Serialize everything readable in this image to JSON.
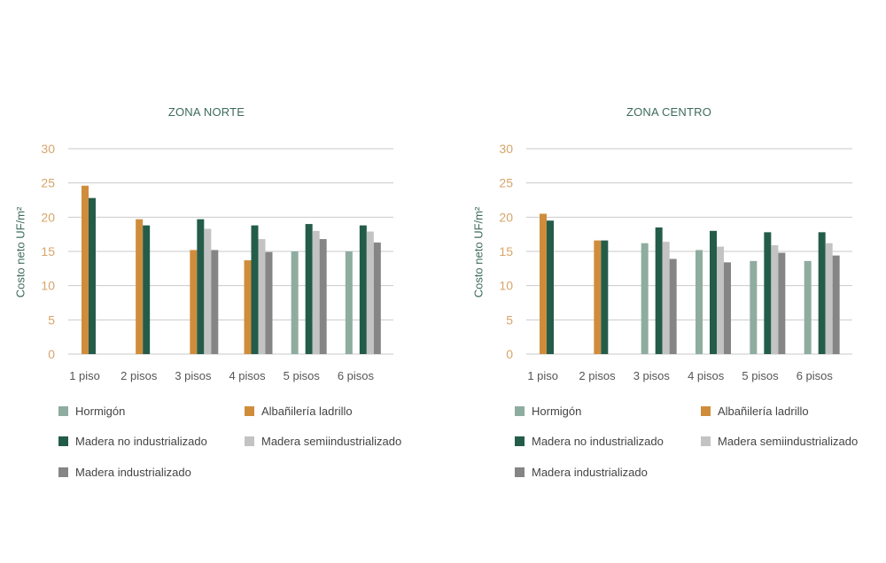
{
  "legend_colors": {
    "Hormigón": "#8eac9f",
    "Albañilería ladrillo": "#cf8d3c",
    "Madera no industrializado": "#245c4a",
    "Madera semiindustrializado": "#c3c3c3",
    "Madera industrializado": "#858585"
  },
  "chart_data": [
    {
      "type": "bar",
      "title": "ZONA NORTE",
      "ylabel": "Costo neto UF/m²",
      "xlabel": "",
      "ylim": [
        0,
        30
      ],
      "yticks": [
        "0",
        "5",
        "10",
        "15",
        "20",
        "25",
        "30"
      ],
      "grid": true,
      "legend_position": "bottom",
      "categories": [
        "1 piso",
        "2 pisos",
        "3 pisos",
        "4 pisos",
        "5 pisos",
        "6 pisos"
      ],
      "series": [
        {
          "name": "Hormigón",
          "values": [
            null,
            null,
            null,
            null,
            15.0,
            15.0
          ]
        },
        {
          "name": "Albañilería ladrillo",
          "values": [
            24.6,
            19.7,
            15.2,
            13.7,
            null,
            null
          ]
        },
        {
          "name": "Madera no industrializado",
          "values": [
            22.8,
            18.8,
            19.7,
            18.8,
            19.0,
            18.8
          ]
        },
        {
          "name": "Madera semiindustrializado",
          "values": [
            null,
            null,
            18.3,
            16.8,
            18.0,
            17.9
          ]
        },
        {
          "name": "Madera industrializado",
          "values": [
            null,
            null,
            15.2,
            14.9,
            16.8,
            16.3
          ]
        }
      ]
    },
    {
      "type": "bar",
      "title": "ZONA CENTRO",
      "ylabel": "Costo neto UF/m²",
      "xlabel": "",
      "ylim": [
        0,
        30
      ],
      "yticks": [
        "0",
        "5",
        "10",
        "15",
        "20",
        "25",
        "30"
      ],
      "grid": true,
      "legend_position": "bottom",
      "categories": [
        "1 piso",
        "2 pisos",
        "3 pisos",
        "4 pisos",
        "5 pisos",
        "6 pisos"
      ],
      "series": [
        {
          "name": "Hormigón",
          "values": [
            null,
            null,
            16.2,
            15.2,
            13.6,
            13.6
          ]
        },
        {
          "name": "Albañilería ladrillo",
          "values": [
            20.5,
            16.6,
            null,
            null,
            null,
            null
          ]
        },
        {
          "name": "Madera no industrializado",
          "values": [
            19.5,
            16.6,
            18.5,
            18.0,
            17.8,
            17.8
          ]
        },
        {
          "name": "Madera semiindustrializado",
          "values": [
            null,
            null,
            16.4,
            15.7,
            15.9,
            16.2
          ]
        },
        {
          "name": "Madera industrializado",
          "values": [
            null,
            null,
            13.9,
            13.4,
            14.8,
            14.4
          ]
        }
      ]
    }
  ]
}
